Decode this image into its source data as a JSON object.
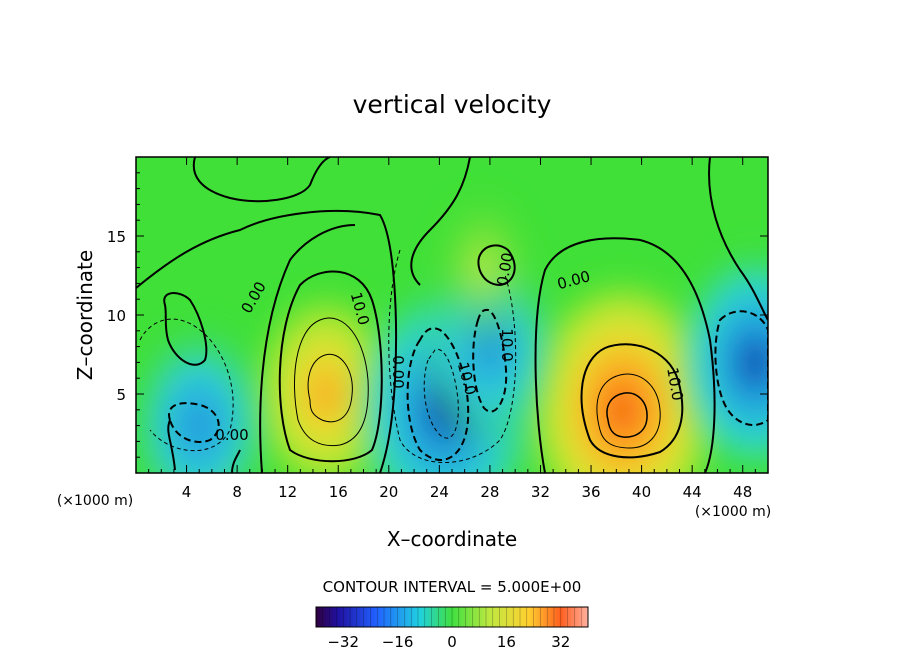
{
  "chart_data": {
    "type": "heatmap",
    "title": "vertical velocity",
    "xlabel": "X–coordinate",
    "ylabel": "Z–coordinate",
    "x_unit_label": "(×1000 m)",
    "x_unit_label_right": "(×1000 m)",
    "xlim": [
      0,
      50
    ],
    "ylim": [
      0,
      20
    ],
    "x_ticks": [
      4,
      8,
      12,
      16,
      20,
      24,
      28,
      32,
      36,
      40,
      44,
      48
    ],
    "y_ticks": [
      5,
      10,
      15
    ],
    "contour_interval_text": "CONTOUR INTERVAL = 5.000E+00",
    "contour_labels": [
      "0.00",
      "10.0",
      "0.00",
      "10.0",
      "0.00",
      "10.0",
      "0.00",
      "10.0",
      "0.00"
    ],
    "colorbar": {
      "range": [
        -40,
        40
      ],
      "ticks": [
        -32,
        -16,
        0,
        16,
        32
      ],
      "tick_labels": [
        "−32",
        "−16",
        "0",
        "16",
        "32"
      ]
    },
    "features": [
      {
        "x": 15,
        "z": 5,
        "peak": 22
      },
      {
        "x": 38.5,
        "z": 4,
        "peak": 32
      },
      {
        "x": 24.5,
        "z": 4,
        "peak": -32
      },
      {
        "x": 28,
        "z": 8,
        "peak": -20
      },
      {
        "x": 5,
        "z": 3,
        "peak": -22
      },
      {
        "x": 49,
        "z": 7,
        "peak": -26
      },
      {
        "x": 27.5,
        "z": 13,
        "peak": 12
      }
    ]
  }
}
